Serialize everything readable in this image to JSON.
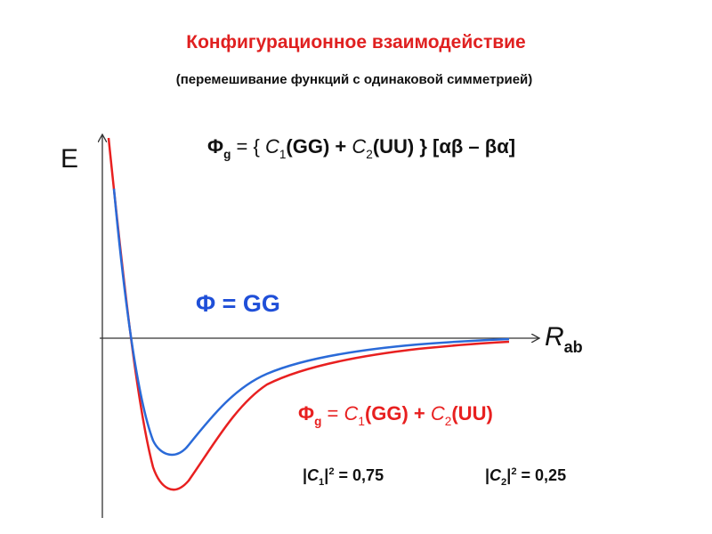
{
  "title": "Конфигурационное взаимодействие",
  "subtitle": "(перемешивание функций с одинаковой симметрией)",
  "axes": {
    "y_label": "E",
    "x_label": "R",
    "x_label_sub": "ab"
  },
  "top_formula": [
    "Φ",
    "g",
    " = { ",
    "C",
    "1",
    "(GG) + ",
    "C",
    "2",
    "(UU) } [αβ – βα]"
  ],
  "blue_formula": "Φ = GG",
  "red_formula": [
    "Φ",
    "g",
    " = ",
    "C",
    "1",
    "(GG) + ",
    "C",
    "2",
    "(UU)"
  ],
  "coefficients": [
    [
      "|",
      "C",
      "1",
      "|",
      "2",
      " = 0,75"
    ],
    [
      "|",
      "C",
      "2",
      "|",
      "2",
      " = 0,25"
    ]
  ]
}
